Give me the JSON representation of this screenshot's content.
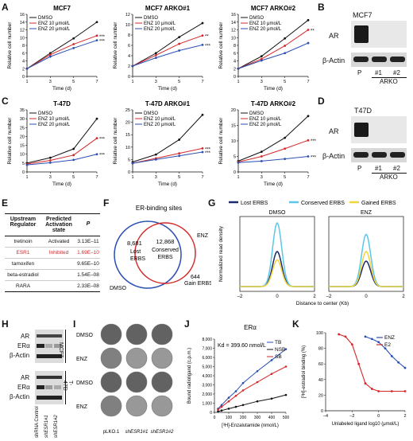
{
  "panel_letters": [
    "A",
    "B",
    "C",
    "D",
    "E",
    "F",
    "G",
    "H",
    "I",
    "J",
    "K"
  ],
  "common": {
    "ylabel_cell": "Relative cell number",
    "xlabel_time": "Time (d)",
    "legend": [
      "DMSO",
      "ENZ 10 μmol/L",
      "ENZ 20 μmol/L"
    ],
    "colors": {
      "dmso": "#111111",
      "enz10": "#d62728",
      "enz20": "#2a4fb3"
    }
  },
  "chart_data": [
    {
      "type": "line",
      "title": "MCF7",
      "xlabel": "Time (d)",
      "ylabel": "Relative cell number",
      "x": [
        1,
        3,
        5,
        7
      ],
      "ylim": [
        0,
        16
      ],
      "yticks": [
        0,
        2,
        4,
        6,
        8,
        10,
        12,
        14,
        16
      ],
      "series": [
        {
          "name": "DMSO",
          "values": [
            2,
            6,
            9.8,
            14
          ]
        },
        {
          "name": "ENZ 10 μmol/L",
          "values": [
            2,
            5.6,
            8.3,
            10.5
          ]
        },
        {
          "name": "ENZ 20 μmol/L",
          "values": [
            2,
            5.1,
            7.3,
            9.3
          ]
        }
      ],
      "annotations": [
        "***",
        "***"
      ]
    },
    {
      "type": "line",
      "title": "MCF7 ARKO#1",
      "xlabel": "Time (d)",
      "ylabel": "Relative cell number",
      "x": [
        1,
        3,
        5,
        7
      ],
      "ylim": [
        0,
        12
      ],
      "yticks": [
        0,
        2,
        4,
        6,
        8,
        10,
        12
      ],
      "series": [
        {
          "name": "DMSO",
          "values": [
            2,
            4.5,
            7.6,
            10.3
          ]
        },
        {
          "name": "ENZ 10 μmol/L",
          "values": [
            2,
            4.1,
            6.3,
            7.9
          ]
        },
        {
          "name": "ENZ 20 μmol/L",
          "values": [
            2,
            3.6,
            5,
            6.1
          ]
        }
      ],
      "annotations": [
        "**",
        "***"
      ]
    },
    {
      "type": "line",
      "title": "MCF7 ARKO#2",
      "xlabel": "Time (d)",
      "ylabel": "Relative cell number",
      "x": [
        1,
        3,
        5,
        7
      ],
      "ylim": [
        0,
        16
      ],
      "yticks": [
        0,
        2,
        4,
        6,
        8,
        10,
        12,
        14,
        16
      ],
      "series": [
        {
          "name": "DMSO",
          "values": [
            2,
            5.2,
            9.8,
            14.5
          ]
        },
        {
          "name": "ENZ 10 μmol/L",
          "values": [
            2,
            4.5,
            7.9,
            12
          ]
        },
        {
          "name": "ENZ 20 μmol/L",
          "values": [
            2,
            4.1,
            6,
            8.6
          ]
        }
      ],
      "annotations": [
        "**"
      ]
    },
    {
      "type": "line",
      "title": "T-47D",
      "xlabel": "Time (d)",
      "ylabel": "Relative cell number",
      "x": [
        1,
        3,
        5,
        7
      ],
      "ylim": [
        0,
        35
      ],
      "yticks": [
        0,
        5,
        10,
        15,
        20,
        25,
        30,
        35
      ],
      "series": [
        {
          "name": "DMSO",
          "values": [
            5,
            8,
            13,
            30
          ]
        },
        {
          "name": "ENZ 10 μmol/L",
          "values": [
            4.5,
            6.5,
            9.5,
            19
          ]
        },
        {
          "name": "ENZ 20 μmol/L",
          "values": [
            4,
            5.2,
            6.8,
            10
          ]
        }
      ],
      "annotations": [
        "***",
        "***"
      ]
    },
    {
      "type": "line",
      "title": "T-47D ARKO#1",
      "xlabel": "Time (d)",
      "ylabel": "Relative cell number",
      "x": [
        1,
        3,
        5,
        7
      ],
      "ylim": [
        0,
        25
      ],
      "yticks": [
        0,
        5,
        10,
        15,
        20,
        25
      ],
      "series": [
        {
          "name": "DMSO",
          "values": [
            4,
            7,
            13,
            23
          ]
        },
        {
          "name": "ENZ 10 μmol/L",
          "values": [
            3.5,
            5.5,
            7.5,
            9.5
          ]
        },
        {
          "name": "ENZ 20 μmol/L",
          "values": [
            3.5,
            5,
            6.5,
            8
          ]
        }
      ],
      "annotations": [
        "***",
        "***"
      ]
    },
    {
      "type": "line",
      "title": "T-47D ARKO#2",
      "xlabel": "Time (d)",
      "ylabel": "Relative cell number",
      "x": [
        1,
        3,
        5,
        7
      ],
      "ylim": [
        0,
        20
      ],
      "yticks": [
        0,
        5,
        10,
        15,
        20
      ],
      "series": [
        {
          "name": "DMSO",
          "values": [
            3.5,
            6.5,
            11,
            18
          ]
        },
        {
          "name": "ENZ 10 μmol/L",
          "values": [
            3.2,
            5,
            7.5,
            10.2
          ]
        },
        {
          "name": "ENZ 20 μmol/L",
          "values": [
            3,
            3.5,
            4.2,
            5
          ]
        }
      ],
      "annotations": [
        "***",
        "***"
      ]
    },
    {
      "type": "line",
      "title": "",
      "xlabel": "Distance to center (Kb)",
      "ylabel": "Normalized read density",
      "subtitle": "DMSO",
      "x": [
        -2,
        0,
        2
      ],
      "series": [
        {
          "name": "Lost ERBS",
          "peak": 0.55
        },
        {
          "name": "Conserved ERBS",
          "peak": 1.0
        },
        {
          "name": "Gained ERBS",
          "peak": 0.42
        }
      ]
    },
    {
      "type": "line",
      "title": "",
      "xlabel": "Distance to center (Kb)",
      "ylabel": "",
      "subtitle": "ENZ",
      "x": [
        -2,
        0,
        2
      ],
      "series": [
        {
          "name": "Lost ERBS",
          "peak": 0.4
        },
        {
          "name": "Conserved ERBS",
          "peak": 0.82
        },
        {
          "name": "Gained ERBS",
          "peak": 0.55
        }
      ]
    },
    {
      "type": "scatter",
      "title": "ERα",
      "xlabel": "[³H]-Enzalutamide (nmol/L)",
      "ylabel": "Bound radioligand (c.p.m.)",
      "annotation": "Kd = 399.60 nmol/L",
      "xlim": [
        0,
        500
      ],
      "ylim": [
        0,
        8000
      ],
      "xticks": [
        0,
        100,
        200,
        300,
        400,
        500
      ],
      "yticks": [
        0,
        1000,
        2000,
        3000,
        4000,
        5000,
        6000,
        7000,
        8000
      ],
      "series": [
        {
          "name": "TB",
          "x": [
            25,
            50,
            100,
            150,
            200,
            300,
            400,
            500
          ],
          "values": [
            400,
            800,
            1600,
            2300,
            3200,
            4500,
            5700,
            6900
          ]
        },
        {
          "name": "NSB",
          "x": [
            25,
            50,
            100,
            150,
            200,
            300,
            400,
            500
          ],
          "values": [
            100,
            200,
            400,
            600,
            800,
            1200,
            1500,
            1900
          ]
        },
        {
          "name": "SB",
          "x": [
            25,
            50,
            100,
            150,
            200,
            300,
            400,
            500
          ],
          "values": [
            300,
            600,
            1200,
            1800,
            2400,
            3300,
            4200,
            5000
          ]
        }
      ]
    },
    {
      "type": "scatter",
      "title": "",
      "xlabel": "Unlabeled ligand log10 (μmol/L)",
      "ylabel": "[³H]-estradiol binding (%)",
      "xlim": [
        -4,
        2
      ],
      "ylim": [
        0,
        100
      ],
      "xticks": [
        -4,
        -2,
        0,
        2
      ],
      "yticks": [
        0,
        20,
        40,
        60,
        80,
        100
      ],
      "series": [
        {
          "name": "ENZ",
          "x": [
            -1,
            -0.5,
            0,
            0.5,
            1,
            1.5,
            2
          ],
          "values": [
            95,
            92,
            88,
            80,
            70,
            62,
            55
          ]
        },
        {
          "name": "E2",
          "x": [
            -3,
            -2.5,
            -2,
            -1.5,
            -1,
            -0.5,
            0,
            1,
            2
          ],
          "values": [
            98,
            95,
            85,
            60,
            35,
            28,
            25,
            25,
            25
          ]
        }
      ]
    }
  ],
  "panelB": {
    "title": "MCF7",
    "labels": [
      "AR",
      "β-Actin"
    ],
    "lanes": [
      "P",
      "#1",
      "#2"
    ],
    "group": "ARKO"
  },
  "panelD": {
    "title": "T47D",
    "labels": [
      "AR",
      "β-Actin"
    ],
    "lanes": [
      "P",
      "#1",
      "#2"
    ],
    "group": "ARKO"
  },
  "panelE": {
    "headers": [
      "Upstream Regulator",
      "Predicted Activation state",
      "P"
    ],
    "rows": [
      [
        "tretinoin",
        "Activated",
        "3.13E–11"
      ],
      [
        "ESR1",
        "Inhibited",
        "1.69E–10"
      ],
      [
        "tamoxifen",
        "",
        "9.65E–10"
      ],
      [
        "beta-estradiol",
        "",
        "1.54E–08"
      ],
      [
        "RARA",
        "",
        "2.33E–08"
      ]
    ]
  },
  "panelF": {
    "title": "ER-binding sites",
    "lost_n": "8,681",
    "lost_label": "Lost ERBS",
    "conserved_n": "12,868",
    "conserved_label": "Conserved ERBS",
    "gain_n": "644",
    "gain_label": "Gain ERBS",
    "dmso": "DMSO",
    "enz": "ENZ"
  },
  "panelG_legend": [
    "Lost ERBS",
    "Conserved ERBS",
    "Gained ERBS"
  ],
  "panelH": {
    "labels_top": [
      "AR",
      "ERα",
      "β-Actin"
    ],
    "labels_bot": [
      "AR",
      "ERα",
      "β-Actin"
    ],
    "cell_top": "MCF7",
    "cell_bot": "T-47D",
    "lanes": [
      "shRNA Control",
      "shESR1#1",
      "shESR1#2"
    ]
  },
  "panelI": {
    "rows": [
      "DMSO",
      "ENZ",
      "DMSO",
      "ENZ"
    ],
    "cols": [
      "pLKO.1",
      "shESR1#1",
      "shESR1#2"
    ]
  },
  "panelJ_annotation": "K"
}
